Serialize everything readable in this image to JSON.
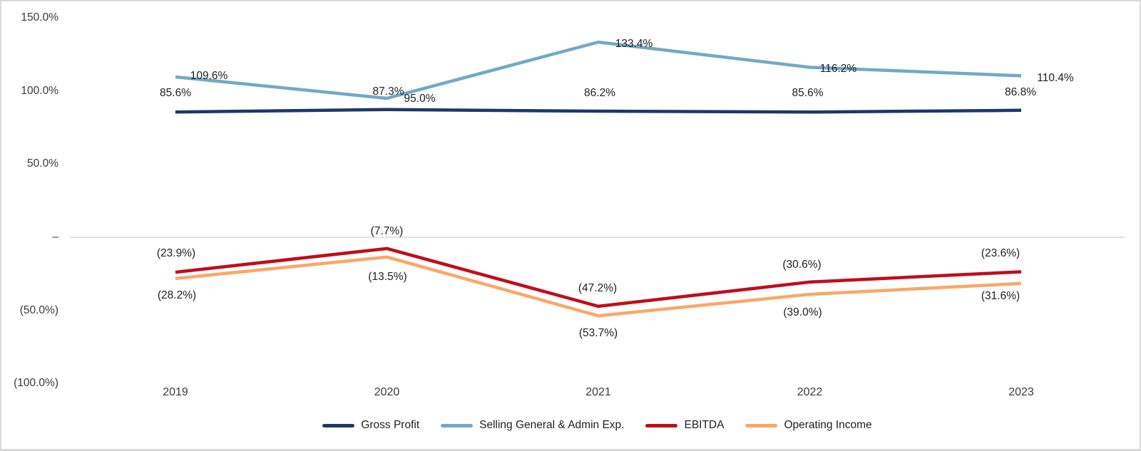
{
  "chart_data": {
    "type": "line",
    "title": "",
    "categories": [
      "2019",
      "2020",
      "2021",
      "2022",
      "2023"
    ],
    "series": [
      {
        "name": "Gross Profit",
        "color": "#1F3864",
        "values": [
          85.6,
          87.3,
          86.2,
          85.6,
          86.8
        ],
        "labels": [
          "85.6%",
          "87.3%",
          "86.2%",
          "85.6%",
          "86.8%"
        ]
      },
      {
        "name": "Selling General & Admin Exp.",
        "color": "#74A8C5",
        "values": [
          109.6,
          95.0,
          133.4,
          116.2,
          110.4
        ],
        "labels": [
          "109.6%",
          "95.0%",
          "133.4%",
          "116.2%",
          "110.4%"
        ]
      },
      {
        "name": "EBITDA",
        "color": "#C00D1D",
        "values": [
          -23.9,
          -7.7,
          -47.2,
          -30.6,
          -23.6
        ],
        "labels": [
          "(23.9%)",
          "(7.7%)",
          "(47.2%)",
          "(30.6%)",
          "(23.6%)"
        ]
      },
      {
        "name": "Operating Income",
        "color": "#F9A769",
        "values": [
          -28.2,
          -13.5,
          -53.7,
          -39.0,
          -31.6
        ],
        "labels": [
          "(28.2%)",
          "(13.5%)",
          "(53.7%)",
          "(39.0%)",
          "(31.6%)"
        ]
      }
    ],
    "y_axis": {
      "ticks": [
        {
          "label": "150.0%",
          "value": 150
        },
        {
          "label": "100.0%",
          "value": 100
        },
        {
          "label": "50.0%",
          "value": 50
        },
        {
          "label": "–",
          "value": 0
        },
        {
          "label": "(50.0%)",
          "value": -50
        },
        {
          "label": "(100.0%)",
          "value": -100
        }
      ],
      "range": [
        -100,
        150
      ]
    },
    "gridlines": {
      "zero_line_only": true,
      "color": "#D9D9D9"
    },
    "legend": {
      "position": "bottom"
    }
  }
}
